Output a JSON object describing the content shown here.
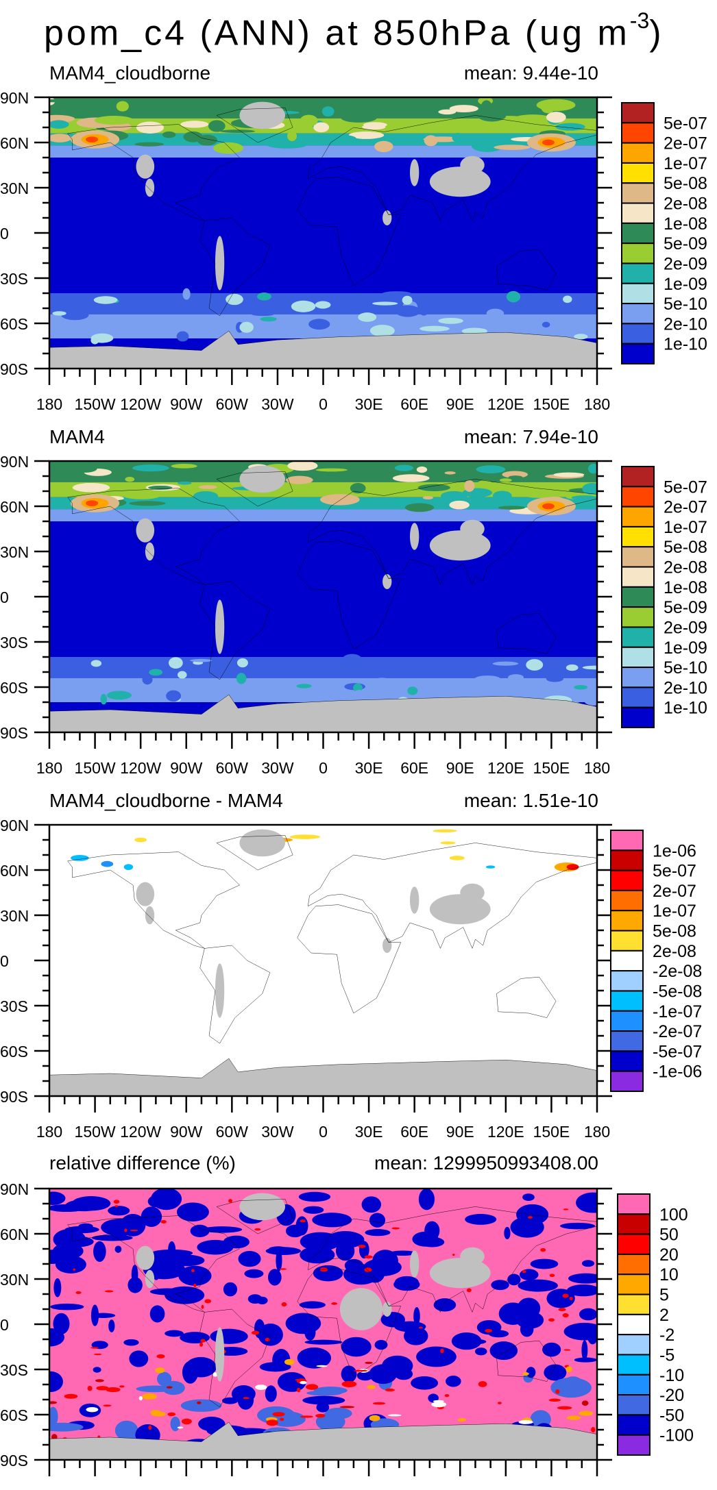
{
  "title": {
    "main": "pom_c4 (ANN) at 850hPa (ug m",
    "superscript": "-3",
    "close": ")"
  },
  "chart_data": [
    {
      "type": "heatmap",
      "title": "MAM4_cloudborne",
      "mean_label": "mean: 9.44e-10",
      "xlabels": [
        "180",
        "150W",
        "120W",
        "90W",
        "60W",
        "30W",
        "0",
        "30E",
        "60E",
        "90E",
        "120E",
        "150E",
        "180"
      ],
      "ylabels": [
        "90N",
        "60N",
        "30N",
        "0",
        "30S",
        "60S",
        "90S"
      ],
      "xlim": [
        -180,
        180
      ],
      "ylim": [
        -90,
        90
      ],
      "colorbar_labels": [
        "5e-07",
        "2e-07",
        "1e-07",
        "5e-08",
        "2e-08",
        "1e-08",
        "5e-09",
        "2e-09",
        "1e-09",
        "5e-10",
        "2e-10",
        "1e-10"
      ],
      "colorbar_colors": [
        "#B22222",
        "#FF4500",
        "#FFA500",
        "#FFE000",
        "#DEB887",
        "#F5E6C8",
        "#2E8B57",
        "#9ACD32",
        "#20B2AA",
        "#B0E0E6",
        "#7B9FF0",
        "#3A5FE0",
        "#0000CD"
      ],
      "style": "concentration"
    },
    {
      "type": "heatmap",
      "title": "MAM4",
      "mean_label": "mean: 7.94e-10",
      "xlabels": [
        "180",
        "150W",
        "120W",
        "90W",
        "60W",
        "30W",
        "0",
        "30E",
        "60E",
        "90E",
        "120E",
        "150E",
        "180"
      ],
      "ylabels": [
        "90N",
        "60N",
        "30N",
        "0",
        "30S",
        "60S",
        "90S"
      ],
      "xlim": [
        -180,
        180
      ],
      "ylim": [
        -90,
        90
      ],
      "colorbar_labels": [
        "5e-07",
        "2e-07",
        "1e-07",
        "5e-08",
        "2e-08",
        "1e-08",
        "5e-09",
        "2e-09",
        "1e-09",
        "5e-10",
        "2e-10",
        "1e-10"
      ],
      "colorbar_colors": [
        "#B22222",
        "#FF4500",
        "#FFA500",
        "#FFE000",
        "#DEB887",
        "#F5E6C8",
        "#2E8B57",
        "#9ACD32",
        "#20B2AA",
        "#B0E0E6",
        "#7B9FF0",
        "#3A5FE0",
        "#0000CD"
      ],
      "style": "concentration"
    },
    {
      "type": "heatmap",
      "title": "MAM4_cloudborne - MAM4",
      "mean_label": "mean: 1.51e-10",
      "xlabels": [
        "180",
        "150W",
        "120W",
        "90W",
        "60W",
        "30W",
        "0",
        "30E",
        "60E",
        "90E",
        "120E",
        "150E",
        "180"
      ],
      "ylabels": [
        "90N",
        "60N",
        "30N",
        "0",
        "30S",
        "60S",
        "90S"
      ],
      "xlim": [
        -180,
        180
      ],
      "ylim": [
        -90,
        90
      ],
      "colorbar_labels": [
        "1e-06",
        "5e-07",
        "2e-07",
        "1e-07",
        "5e-08",
        "2e-08",
        "-2e-08",
        "-5e-08",
        "-1e-07",
        "-2e-07",
        "-5e-07",
        "-1e-06"
      ],
      "colorbar_colors": [
        "#FF69B4",
        "#C80000",
        "#FF0000",
        "#FF6E00",
        "#FFA800",
        "#FFDF30",
        "#FFFFFF",
        "#A0D0FF",
        "#00BFFF",
        "#1E90FF",
        "#4169E1",
        "#0000CD",
        "#8A2BE2"
      ],
      "style": "difference"
    },
    {
      "type": "heatmap",
      "title": "relative difference (%)",
      "mean_label": "mean: 1299950993408.00",
      "xlabels": [
        "180",
        "150W",
        "120W",
        "90W",
        "60W",
        "30W",
        "0",
        "30E",
        "60E",
        "90E",
        "120E",
        "150E",
        "180"
      ],
      "ylabels": [
        "90N",
        "60N",
        "30N",
        "0",
        "30S",
        "60S",
        "90S"
      ],
      "xlim": [
        -180,
        180
      ],
      "ylim": [
        -90,
        90
      ],
      "colorbar_labels": [
        "100",
        "50",
        "20",
        "10",
        "5",
        "2",
        "-2",
        "-5",
        "-10",
        "-20",
        "-50",
        "-100"
      ],
      "colorbar_colors": [
        "#FF69B4",
        "#C80000",
        "#FF0000",
        "#FF6E00",
        "#FFA800",
        "#FFDF30",
        "#FFFFFF",
        "#A0D0FF",
        "#00BFFF",
        "#1E90FF",
        "#4169E1",
        "#0000CD",
        "#8A2BE2"
      ],
      "style": "relative"
    }
  ],
  "missing_color": "#C0C0C0"
}
